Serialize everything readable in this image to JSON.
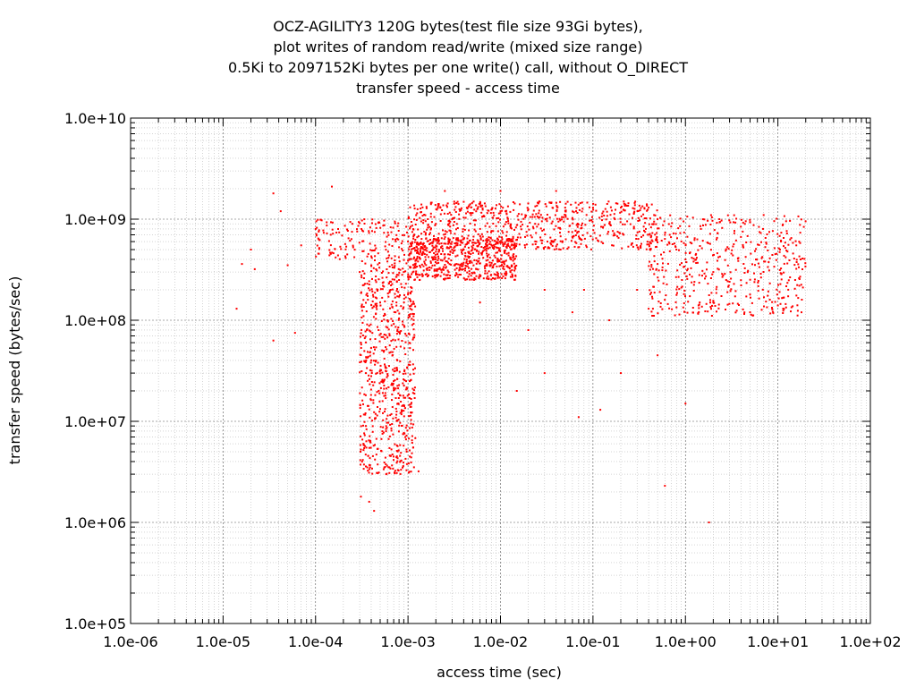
{
  "chart_data": {
    "type": "scatter",
    "title_lines": [
      "OCZ-AGILITY3 120G bytes(test file size 93Gi bytes),",
      "plot writes of random read/write (mixed size range)",
      "0.5Ki to 2097152Ki bytes per one write() call, without O_DIRECT",
      "transfer speed - access time"
    ],
    "xlabel": "access time (sec)",
    "ylabel": "transfer speed (bytes/sec)",
    "x_scale": "log",
    "y_scale": "log",
    "xlim": [
      1e-06,
      100
    ],
    "ylim": [
      100000.0,
      10000000000.0
    ],
    "x_ticks": [
      "1.0e-06",
      "1.0e-05",
      "1.0e-04",
      "1.0e-03",
      "1.0e-02",
      "1.0e-01",
      "1.0e+00",
      "1.0e+01",
      "1.0e+02"
    ],
    "y_ticks": [
      "1.0e+05",
      "1.0e+06",
      "1.0e+07",
      "1.0e+08",
      "1.0e+09",
      "1.0e+10"
    ],
    "grid": true,
    "legend": "none",
    "point_color": "#ff0000",
    "points": [
      [
        1.6e-05,
        360000000.0
      ],
      [
        1.4e-05,
        130000000.0
      ],
      [
        2e-05,
        500000000.0
      ],
      [
        2.2e-05,
        320000000.0
      ],
      [
        3.5e-05,
        1800000000.0
      ],
      [
        3.5e-05,
        63000000.0
      ],
      [
        4.2e-05,
        1200000000.0
      ],
      [
        5e-05,
        350000000.0
      ],
      [
        6e-05,
        75000000.0
      ],
      [
        7e-05,
        550000000.0
      ],
      [
        0.0001,
        800000000.0
      ],
      [
        0.00015,
        2100000000.0
      ],
      [
        0.00025,
        900000000.0
      ],
      [
        0.0003,
        300000000.0
      ],
      [
        0.00031,
        1800000.0
      ],
      [
        0.00033,
        5200000.0
      ],
      [
        0.00035,
        9000000.0
      ],
      [
        0.00038,
        1600000.0
      ],
      [
        0.0004,
        28000000.0
      ],
      [
        0.00043,
        1300000.0
      ],
      [
        0.00045,
        40000000.0
      ],
      [
        0.00048,
        80000000.0
      ],
      [
        0.0005,
        150000000.0
      ],
      [
        0.00055,
        50000000.0
      ],
      [
        0.00058,
        3000000.0
      ],
      [
        0.0006,
        100000000.0
      ],
      [
        0.00065,
        200000000.0
      ],
      [
        0.0007,
        25000000.0
      ],
      [
        0.00075,
        150000000.0
      ],
      [
        0.0008,
        250000000.0
      ],
      [
        0.0009,
        300000000.0
      ],
      [
        0.001,
        180000000.0
      ],
      [
        0.0012,
        350000000.0
      ],
      [
        0.0015,
        380000000.0
      ],
      [
        0.002,
        420000000.0
      ],
      [
        0.0025,
        450000000.0
      ],
      [
        0.003,
        500000000.0
      ],
      [
        0.004,
        500000000.0
      ],
      [
        0.005,
        520000000.0
      ],
      [
        0.007,
        550000000.0
      ],
      [
        0.01,
        580000000.0
      ],
      [
        0.013,
        600000000.0
      ],
      [
        0.001,
        600000000.0
      ],
      [
        0.0015,
        750000000.0
      ],
      [
        0.002,
        900000000.0
      ],
      [
        0.003,
        1000000000.0
      ],
      [
        0.005,
        1150000000.0
      ],
      [
        0.01,
        1200000000.0
      ],
      [
        0.02,
        1250000000.0
      ],
      [
        0.05,
        1300000000.0
      ],
      [
        0.1,
        1300000000.0
      ],
      [
        0.2,
        1300000000.0
      ],
      [
        0.4,
        1300000000.0
      ],
      [
        0.0025,
        1900000000.0
      ],
      [
        0.01,
        1900000000.0
      ],
      [
        0.04,
        1900000000.0
      ],
      [
        0.5,
        1000000000.0
      ],
      [
        0.6,
        700000000.0
      ],
      [
        0.8,
        500000000.0
      ],
      [
        1.0,
        400000000.0
      ],
      [
        2.0,
        300000000.0
      ],
      [
        3.0,
        240000000.0
      ],
      [
        5.0,
        180000000.0
      ],
      [
        10.0,
        140000000.0
      ],
      [
        18.0,
        120000000.0
      ],
      [
        2.0,
        150000000.0
      ],
      [
        5.0,
        120000000.0
      ],
      [
        0.3,
        200000000.0
      ],
      [
        0.4,
        130000000.0
      ],
      [
        0.5,
        45000000.0
      ],
      [
        0.6,
        2300000.0
      ],
      [
        1.0,
        15000000.0
      ],
      [
        1.8,
        1000000.0
      ],
      [
        0.2,
        30000000.0
      ],
      [
        0.12,
        13000000.0
      ],
      [
        0.07,
        11000000.0
      ],
      [
        0.015,
        20000000.0
      ],
      [
        0.03,
        30000000.0
      ],
      [
        0.0013,
        3200000.0
      ],
      [
        0.06,
        120000000.0
      ],
      [
        0.08,
        200000000.0
      ],
      [
        0.15,
        100000000.0
      ],
      [
        0.03,
        200000000.0
      ],
      [
        0.02,
        80000000.0
      ],
      [
        0.006,
        150000000.0
      ]
    ],
    "clusters": [
      {
        "x_range": [
          0.0003,
          0.0012
        ],
        "y_range": [
          3000000.0,
          400000000.0
        ],
        "count": 700
      },
      {
        "x_range": [
          0.001,
          0.015
        ],
        "y_range": [
          250000000.0,
          650000000.0
        ],
        "count": 600
      },
      {
        "x_range": [
          0.001,
          0.5
        ],
        "y_range": [
          500000000.0,
          1500000000.0
        ],
        "count": 700
      },
      {
        "x_range": [
          0.4,
          20.0
        ],
        "y_range": [
          110000000.0,
          1100000000.0
        ],
        "count": 500
      },
      {
        "x_range": [
          0.0001,
          0.001
        ],
        "y_range": [
          400000000.0,
          1000000000.0
        ],
        "count": 150
      }
    ]
  }
}
